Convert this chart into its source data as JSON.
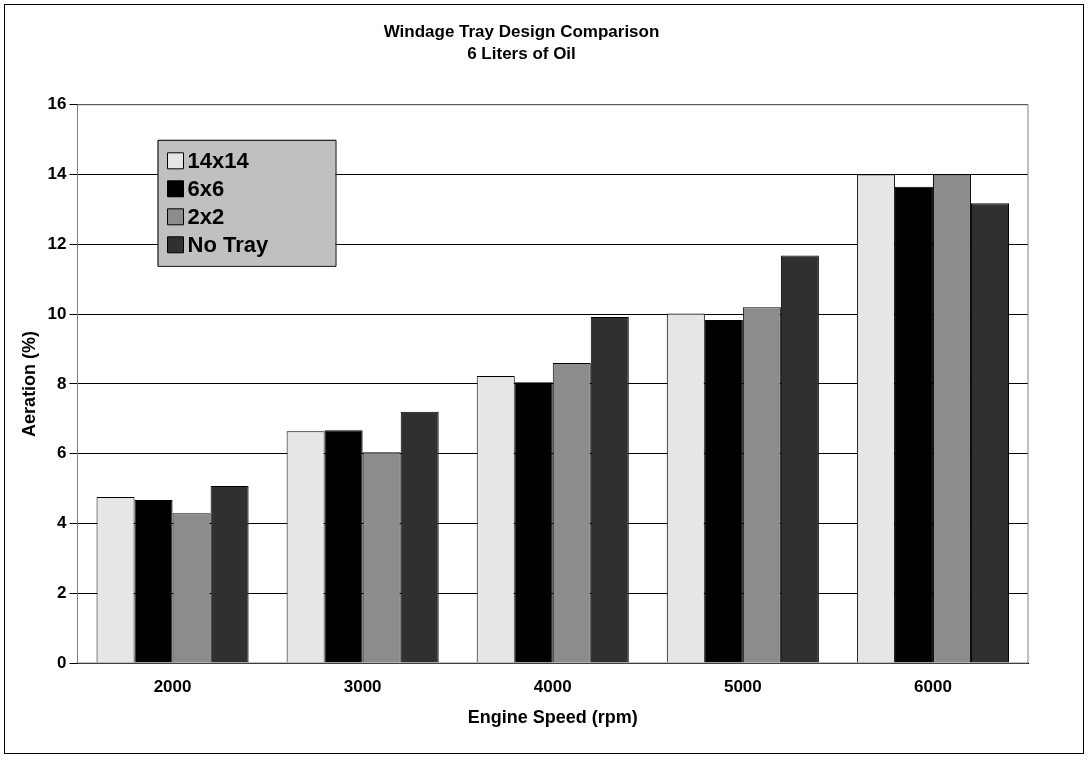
{
  "chart_data": {
    "type": "bar",
    "title": "Windage Tray Design Comparison",
    "subtitle": "6 Liters of Oil",
    "xlabel": "Engine Speed (rpm)",
    "ylabel": "Aeration (%)",
    "categories": [
      "2000",
      "3000",
      "4000",
      "5000",
      "6000"
    ],
    "series": [
      {
        "name": "14x14",
        "color": "#e6e6e6",
        "values": [
          4.76,
          6.64,
          8.23,
          10.02,
          14.0
        ]
      },
      {
        "name": "6x6",
        "color": "#000000",
        "values": [
          4.67,
          6.67,
          8.05,
          9.83,
          13.65
        ]
      },
      {
        "name": "2x2",
        "color": "#8c8c8c",
        "values": [
          4.29,
          6.04,
          8.6,
          10.2,
          14.0
        ]
      },
      {
        "name": "No Tray",
        "color": "#303030",
        "values": [
          5.07,
          7.2,
          9.92,
          11.68,
          13.18
        ]
      }
    ],
    "ylim": [
      0,
      16
    ],
    "yticks": [
      0,
      2,
      4,
      6,
      8,
      10,
      12,
      14,
      16
    ],
    "grid": "y",
    "legend": "top left"
  }
}
